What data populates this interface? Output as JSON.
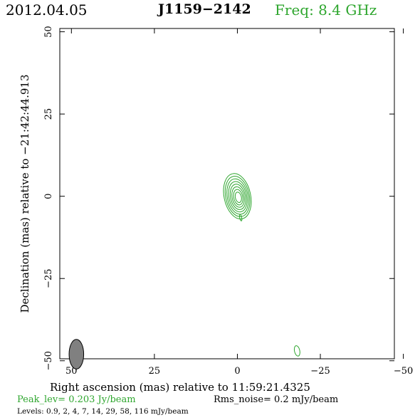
{
  "header": {
    "date": "2012.04.05",
    "source": "J1159−2142",
    "freq": "Freq:  8.4  GHz"
  },
  "footer": {
    "peak": "Peak_lev=  0.203 Jy/beam",
    "rms": "Rms_noise=   0.2  mJy/beam",
    "levels": "Levels: 0.9,    2,    4,    7,   14,   29,   58, 116  mJy/beam"
  },
  "colors": {
    "contour": "#2ea62e",
    "beam": "#808080",
    "text": "#000000"
  },
  "chart_data": {
    "type": "contour",
    "xlabel": "Right ascension (mas) relative to 11:59:21.4325",
    "ylabel": "Declination (mas) relative to −21:42:44.913",
    "xlim": [
      50,
      -50
    ],
    "ylim": [
      -50,
      50
    ],
    "x_ticks": [
      50,
      25,
      0,
      -25,
      -50
    ],
    "y_ticks": [
      50,
      25,
      0,
      -25,
      -50
    ],
    "x_tick_labels": [
      "50",
      "25",
      "0",
      "−25",
      "−50"
    ],
    "y_tick_labels": [
      "50",
      "25",
      "0",
      "−25",
      "−50"
    ],
    "levels_mJy": [
      0.9,
      2,
      4,
      7,
      14,
      29,
      58,
      116
    ],
    "peak_Jy_per_beam": 0.203,
    "rms_noise_mJy": 0.2,
    "components": [
      {
        "name": "core",
        "ra": 0.0,
        "dec": 0.0,
        "ra_extent": 4,
        "dec_extent": 7,
        "levels_drawn": 8
      },
      {
        "name": "jet-tail",
        "ra": -1,
        "dec": -6.5,
        "ra_extent": 0.3,
        "dec_extent": 1,
        "levels_drawn": 1
      },
      {
        "name": "isolated-patch",
        "ra": -18,
        "dec": -47,
        "ra_extent": 0.8,
        "dec_extent": 1.6,
        "levels_drawn": 1
      }
    ],
    "beam": {
      "ra": 48.5,
      "dec": -48,
      "major_mas": 4.5,
      "minor_mas": 2.2,
      "pa_deg": 0
    }
  }
}
